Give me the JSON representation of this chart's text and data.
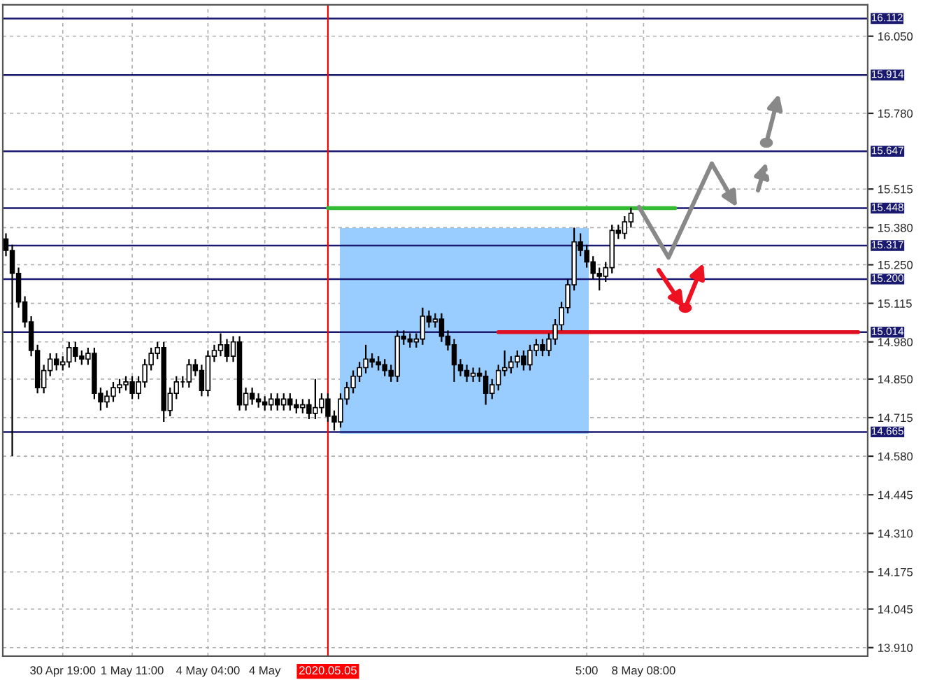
{
  "chart_data": {
    "type": "candlestick",
    "categories": [
      null,
      null,
      null,
      null,
      null,
      null,
      null,
      null,
      null,
      "30 Apr 19:00",
      null,
      null,
      null,
      null,
      null,
      null,
      null,
      null,
      null,
      null,
      "1 May 11:00",
      null,
      null,
      null,
      null,
      null,
      null,
      null,
      null,
      null,
      null,
      null,
      "4 May 04:00",
      null,
      null,
      null,
      null,
      null,
      null,
      null,
      null,
      "4 May",
      null,
      null,
      null,
      null,
      null,
      null,
      null,
      null,
      null,
      "2020.05.05",
      null,
      null,
      null,
      null,
      null,
      null,
      null,
      null,
      null,
      null,
      null,
      null,
      null,
      null,
      null,
      null,
      null,
      null,
      null,
      null,
      null,
      null,
      null,
      null,
      null,
      null,
      null,
      null,
      null,
      null,
      null,
      null,
      null,
      null,
      null,
      null,
      null,
      null,
      null,
      null,
      "5:00",
      null,
      null,
      null,
      null,
      null,
      null,
      null,
      null,
      "8 May 08:00",
      null,
      null,
      null,
      null,
      null,
      null,
      null,
      null,
      null,
      null,
      null,
      null,
      null,
      null,
      null,
      null,
      null,
      null,
      null,
      null,
      null,
      null,
      null,
      null,
      null,
      null,
      null,
      null,
      null,
      null,
      null,
      null,
      null,
      null,
      null
    ],
    "ohlc": [
      [
        15.34,
        15.36,
        15.28,
        15.3
      ],
      [
        15.3,
        15.32,
        14.58,
        15.22
      ],
      [
        15.22,
        15.24,
        15.1,
        15.12
      ],
      [
        15.12,
        15.14,
        15.03,
        15.05
      ],
      [
        15.05,
        15.07,
        14.93,
        14.95
      ],
      [
        14.95,
        14.97,
        14.8,
        14.82
      ],
      [
        14.82,
        14.9,
        14.8,
        14.88
      ],
      [
        14.88,
        14.94,
        14.86,
        14.92
      ],
      [
        14.92,
        14.94,
        14.88,
        14.9
      ],
      [
        14.9,
        14.93,
        14.88,
        14.91
      ],
      [
        14.91,
        14.98,
        14.89,
        14.96
      ],
      [
        14.96,
        14.98,
        14.91,
        14.93
      ],
      [
        14.93,
        14.95,
        14.9,
        14.92
      ],
      [
        14.92,
        14.96,
        14.9,
        14.94
      ],
      [
        14.94,
        14.96,
        14.78,
        14.8
      ],
      [
        14.8,
        14.82,
        14.74,
        14.77
      ],
      [
        14.77,
        14.81,
        14.75,
        14.79
      ],
      [
        14.79,
        14.84,
        14.77,
        14.82
      ],
      [
        14.82,
        14.85,
        14.8,
        14.83
      ],
      [
        14.83,
        14.86,
        14.81,
        14.84
      ],
      [
        14.84,
        14.86,
        14.78,
        14.8
      ],
      [
        14.8,
        14.86,
        14.78,
        14.84
      ],
      [
        14.84,
        14.92,
        14.82,
        14.9
      ],
      [
        14.9,
        14.96,
        14.88,
        14.94
      ],
      [
        14.94,
        14.98,
        14.92,
        14.96
      ],
      [
        14.96,
        14.98,
        14.7,
        14.74
      ],
      [
        14.74,
        14.82,
        14.72,
        14.8
      ],
      [
        14.8,
        14.86,
        14.78,
        14.84
      ],
      [
        14.84,
        14.86,
        14.82,
        14.84
      ],
      [
        14.84,
        14.92,
        14.82,
        14.9
      ],
      [
        14.9,
        14.92,
        14.86,
        14.88
      ],
      [
        14.88,
        14.9,
        14.79,
        14.81
      ],
      [
        14.81,
        14.95,
        14.79,
        14.93
      ],
      [
        14.93,
        14.97,
        14.91,
        14.95
      ],
      [
        14.95,
        15.01,
        14.93,
        14.97
      ],
      [
        14.97,
        14.99,
        14.91,
        14.93
      ],
      [
        14.93,
        15.0,
        14.91,
        14.98
      ],
      [
        14.98,
        15.0,
        14.74,
        14.76
      ],
      [
        14.76,
        14.82,
        14.74,
        14.8
      ],
      [
        14.8,
        14.82,
        14.76,
        14.78
      ],
      [
        14.78,
        14.8,
        14.75,
        14.77
      ],
      [
        14.77,
        14.79,
        14.74,
        14.76
      ],
      [
        14.76,
        14.8,
        14.74,
        14.78
      ],
      [
        14.78,
        14.8,
        14.74,
        14.76
      ],
      [
        14.76,
        14.8,
        14.74,
        14.78
      ],
      [
        14.78,
        14.8,
        14.74,
        14.76
      ],
      [
        14.76,
        14.78,
        14.73,
        14.75
      ],
      [
        14.75,
        14.78,
        14.73,
        14.76
      ],
      [
        14.76,
        14.78,
        14.71,
        14.73
      ],
      [
        14.73,
        14.85,
        14.71,
        14.75
      ],
      [
        14.75,
        14.8,
        14.73,
        14.78
      ],
      [
        14.78,
        14.8,
        14.7,
        14.72
      ],
      [
        14.72,
        14.74,
        14.67,
        14.7
      ],
      [
        14.7,
        14.8,
        14.68,
        14.78
      ],
      [
        14.78,
        14.84,
        14.76,
        14.82
      ],
      [
        14.82,
        14.88,
        14.8,
        14.86
      ],
      [
        14.86,
        14.91,
        14.84,
        14.89
      ],
      [
        14.89,
        14.97,
        14.87,
        14.92
      ],
      [
        14.92,
        14.94,
        14.89,
        14.91
      ],
      [
        14.91,
        14.93,
        14.88,
        14.9
      ],
      [
        14.9,
        14.92,
        14.86,
        14.88
      ],
      [
        14.88,
        14.9,
        14.84,
        14.86
      ],
      [
        14.86,
        15.02,
        14.84,
        15.0
      ],
      [
        15.0,
        15.02,
        14.97,
        14.99
      ],
      [
        14.99,
        15.01,
        14.96,
        14.98
      ],
      [
        14.98,
        15.01,
        14.96,
        14.99
      ],
      [
        14.99,
        15.1,
        14.97,
        15.07
      ],
      [
        15.07,
        15.09,
        15.03,
        15.05
      ],
      [
        15.05,
        15.08,
        15.03,
        15.06
      ],
      [
        15.06,
        15.08,
        14.98,
        15.0
      ],
      [
        15.0,
        15.02,
        14.95,
        14.97
      ],
      [
        14.97,
        14.99,
        14.84,
        14.9
      ],
      [
        14.9,
        14.92,
        14.86,
        14.88
      ],
      [
        14.88,
        14.9,
        14.84,
        14.86
      ],
      [
        14.86,
        14.89,
        14.84,
        14.87
      ],
      [
        14.87,
        14.89,
        14.84,
        14.86
      ],
      [
        14.86,
        14.88,
        14.76,
        14.8
      ],
      [
        14.8,
        14.85,
        14.78,
        14.83
      ],
      [
        14.83,
        14.9,
        14.81,
        14.88
      ],
      [
        14.88,
        14.95,
        14.86,
        14.89
      ],
      [
        14.89,
        14.93,
        14.87,
        14.91
      ],
      [
        14.91,
        14.95,
        14.89,
        14.93
      ],
      [
        14.93,
        14.95,
        14.88,
        14.9
      ],
      [
        14.9,
        14.97,
        14.88,
        14.95
      ],
      [
        14.95,
        14.99,
        14.93,
        14.97
      ],
      [
        14.97,
        14.99,
        14.93,
        14.95
      ],
      [
        14.95,
        15.01,
        14.93,
        14.99
      ],
      [
        14.99,
        15.06,
        14.97,
        15.04
      ],
      [
        15.04,
        15.12,
        15.02,
        15.1
      ],
      [
        15.1,
        15.2,
        15.08,
        15.18
      ],
      [
        15.18,
        15.38,
        15.16,
        15.33
      ],
      [
        15.33,
        15.36,
        15.28,
        15.3
      ],
      [
        15.3,
        15.32,
        15.24,
        15.26
      ],
      [
        15.26,
        15.28,
        15.2,
        15.22
      ],
      [
        15.22,
        15.24,
        15.16,
        15.21
      ],
      [
        15.21,
        15.26,
        15.19,
        15.24
      ],
      [
        15.24,
        15.39,
        15.22,
        15.37
      ],
      [
        15.37,
        15.39,
        15.34,
        15.36
      ],
      [
        15.36,
        15.42,
        15.34,
        15.4
      ],
      [
        15.4,
        15.45,
        15.38,
        15.43
      ],
      null,
      null,
      null,
      null,
      null,
      null,
      null,
      null,
      null,
      null,
      null,
      null,
      null,
      null,
      null,
      null,
      null,
      null,
      null,
      null,
      null,
      null,
      null,
      null,
      null,
      null,
      null,
      null,
      null,
      null,
      null,
      null,
      null,
      null,
      null,
      null,
      null
    ],
    "ylim": [
      13.88,
      16.16
    ],
    "yticks": [
      {
        "value": 13.91,
        "label": "13.910"
      },
      14.045,
      14.175,
      {
        "value": 14.31,
        "label": "14.310"
      },
      14.445,
      {
        "value": 14.58,
        "label": "14.580"
      },
      14.715,
      {
        "value": 14.85,
        "label": "14.850"
      },
      {
        "value": 14.98,
        "label": "14.980"
      },
      15.115,
      {
        "value": 15.25,
        "label": "15.250"
      },
      {
        "value": 15.38,
        "label": "15.380"
      },
      15.515,
      {
        "value": 15.78,
        "label": "15.780"
      },
      {
        "value": 16.05,
        "label": "16.050"
      }
    ],
    "ref_lines": [
      {
        "axis": "y",
        "value": 16.112,
        "label": "16.112",
        "color": "#191970"
      },
      {
        "axis": "y",
        "value": 15.914,
        "label": "15.914",
        "color": "#191970"
      },
      {
        "axis": "y",
        "value": 15.647,
        "label": "15.647",
        "color": "#191970"
      },
      {
        "axis": "y",
        "value": 15.448,
        "label": "15.448",
        "color": "#191970"
      },
      {
        "axis": "y",
        "value": 15.317,
        "label": "15.317",
        "color": "#191970"
      },
      {
        "axis": "y",
        "value": 15.2,
        "label": "15.200",
        "color": "#191970"
      },
      {
        "axis": "y",
        "value": 15.014,
        "label": "15.014",
        "color": "#191970"
      },
      {
        "axis": "y",
        "value": 14.665,
        "label": "14.665",
        "color": "#191970"
      },
      {
        "axis": "x",
        "value": "2020.05.05",
        "label": null,
        "color": "#ff0000"
      }
    ],
    "series": [
      {
        "type": "line",
        "color": "#33bb33",
        "values": [
          null,
          null,
          null,
          null,
          null,
          null,
          null,
          null,
          null,
          null,
          null,
          null,
          null,
          null,
          null,
          null,
          null,
          null,
          null,
          null,
          null,
          null,
          null,
          null,
          null,
          null,
          null,
          null,
          null,
          null,
          null,
          null,
          null,
          null,
          null,
          null,
          null,
          null,
          null,
          null,
          null,
          null,
          null,
          null,
          null,
          null,
          null,
          null,
          null,
          null,
          null,
          15.448,
          15.448,
          15.448,
          15.448,
          15.448,
          15.448,
          15.448,
          15.448,
          15.448,
          15.448,
          15.448,
          15.448,
          15.448,
          15.448,
          15.448,
          15.448,
          15.448,
          15.448,
          15.448,
          15.448,
          15.448,
          15.448,
          15.448,
          15.448,
          15.448,
          15.448,
          15.448,
          15.448,
          15.448,
          15.448,
          15.448,
          15.448,
          15.448,
          15.448,
          15.448,
          15.448,
          15.448,
          15.448,
          15.448,
          15.448,
          15.448,
          15.448,
          15.448,
          15.448,
          15.448,
          15.448,
          15.448,
          15.448,
          15.448,
          15.448,
          15.448,
          15.448,
          15.448,
          15.448,
          15.448,
          15.448,
          null,
          null,
          null,
          null,
          null,
          null,
          null,
          null,
          null,
          null,
          null,
          null,
          null,
          null,
          null,
          null,
          null,
          null,
          null,
          null,
          null,
          null,
          null,
          null,
          null,
          null,
          null,
          null,
          null,
          null
        ]
      },
      {
        "type": "line",
        "color": "#dd1122",
        "values": [
          null,
          null,
          null,
          null,
          null,
          null,
          null,
          null,
          null,
          null,
          null,
          null,
          null,
          null,
          null,
          null,
          null,
          null,
          null,
          null,
          null,
          null,
          null,
          null,
          null,
          null,
          null,
          null,
          null,
          null,
          null,
          null,
          null,
          null,
          null,
          null,
          null,
          null,
          null,
          null,
          null,
          null,
          null,
          null,
          null,
          null,
          null,
          null,
          null,
          null,
          null,
          null,
          null,
          null,
          null,
          null,
          null,
          null,
          null,
          null,
          null,
          null,
          null,
          null,
          null,
          null,
          null,
          null,
          null,
          null,
          null,
          null,
          null,
          null,
          null,
          null,
          null,
          null,
          15.014,
          15.014,
          15.014,
          15.014,
          15.014,
          15.014,
          15.014,
          15.014,
          15.014,
          15.014,
          15.014,
          15.014,
          15.014,
          15.014,
          15.014,
          15.014,
          15.014,
          15.014,
          15.014,
          15.014,
          15.014,
          15.014,
          15.014,
          15.014,
          15.014,
          15.014,
          15.014,
          15.014,
          15.014,
          15.014,
          15.014,
          15.014,
          15.014,
          15.014,
          15.014,
          15.014,
          15.014,
          15.014,
          15.014,
          15.014,
          15.014,
          15.014,
          15.014,
          15.014,
          15.014,
          15.014,
          15.014,
          15.014,
          15.014,
          15.014,
          15.014,
          15.014,
          15.014,
          15.014,
          15.014,
          15.014,
          15.014,
          15.014,
          null
        ]
      }
    ],
    "grid": true
  }
}
